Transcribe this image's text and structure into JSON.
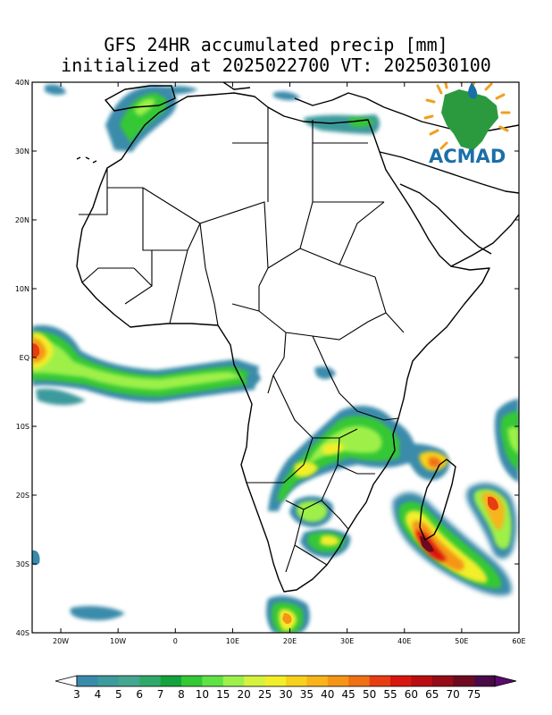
{
  "title": {
    "line1": "GFS 24HR accumulated precip [mm]",
    "line2": "initialized at 2025022700 VT: 2025030100"
  },
  "map": {
    "lon_range": [
      -25,
      60
    ],
    "lat_range": [
      -40,
      40
    ],
    "lat_ticks": [
      {
        "value": 40,
        "label": "40N"
      },
      {
        "value": 30,
        "label": "30N"
      },
      {
        "value": 20,
        "label": "20N"
      },
      {
        "value": 10,
        "label": "10N"
      },
      {
        "value": 0,
        "label": "EQ"
      },
      {
        "value": -10,
        "label": "10S"
      },
      {
        "value": -20,
        "label": "20S"
      },
      {
        "value": -30,
        "label": "30S"
      },
      {
        "value": -40,
        "label": "40S"
      }
    ],
    "lon_ticks": [
      {
        "value": -20,
        "label": "20W"
      },
      {
        "value": -10,
        "label": "10W"
      },
      {
        "value": 0,
        "label": "0"
      },
      {
        "value": 10,
        "label": "10E"
      },
      {
        "value": 20,
        "label": "20E"
      },
      {
        "value": 30,
        "label": "30E"
      },
      {
        "value": 40,
        "label": "40E"
      },
      {
        "value": 50,
        "label": "50E"
      },
      {
        "value": 60,
        "label": "60E"
      }
    ]
  },
  "logo": {
    "text": "ACMAD"
  },
  "colorbar": {
    "levels": [
      "3",
      "4",
      "5",
      "6",
      "7",
      "8",
      "10",
      "15",
      "20",
      "25",
      "30",
      "35",
      "40",
      "45",
      "50",
      "55",
      "60",
      "65",
      "70",
      "75"
    ],
    "colors": [
      "#3a8bab",
      "#3e9a9c",
      "#44a690",
      "#2fa86a",
      "#13a33c",
      "#34c834",
      "#5fe245",
      "#9ef04a",
      "#d4f23e",
      "#f2ee2a",
      "#f8d11e",
      "#f8b41a",
      "#f59518",
      "#f07015",
      "#e73d12",
      "#d8150f",
      "#b90d12",
      "#950b16",
      "#6e0a1f",
      "#4a0a47"
    ],
    "under_color": "#ffffff",
    "over_color": "#5b0a6b"
  }
}
